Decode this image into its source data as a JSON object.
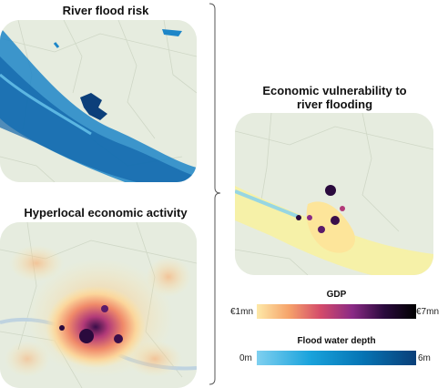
{
  "panels": {
    "flood": {
      "title": "River flood risk"
    },
    "economic": {
      "title": "Hyperlocal economic activity"
    },
    "vulnerability": {
      "title_line1": "Economic vulnerability to",
      "title_line2": "river flooding"
    }
  },
  "legends": {
    "gdp": {
      "title": "GDP",
      "min_label": "€1mn",
      "max_label": "€7mn",
      "colors": [
        "#fde9a8",
        "#f6a36a",
        "#d44b6a",
        "#8a2a85",
        "#2a0a3d",
        "#000000"
      ]
    },
    "flood_depth": {
      "title": "Flood water depth",
      "min_label": "0m",
      "max_label": "6m",
      "colors": [
        "#7fd0f0",
        "#1aa3dc",
        "#0574b4",
        "#0a3f78"
      ]
    }
  },
  "colors": {
    "map_base": "#e6ecdf",
    "map_lines": "#c9d2bf",
    "flood": "#1a8fd0",
    "bracket": "#555555"
  }
}
